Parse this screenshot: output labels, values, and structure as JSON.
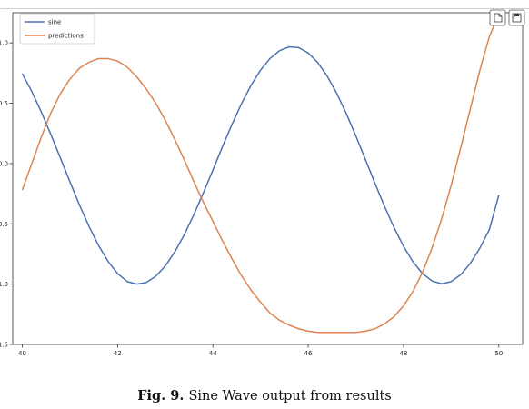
{
  "figure": {
    "caption_prefix": "Fig. 9.",
    "caption_text": "Sine Wave output from results"
  },
  "toolbar": {
    "buttons": [
      {
        "icon": "page-icon"
      },
      {
        "icon": "save-icon"
      }
    ]
  },
  "chart_data": {
    "type": "line",
    "xlim": [
      39.8,
      50.5
    ],
    "ylim": [
      -1.5,
      1.25
    ],
    "xticks": [
      40,
      42,
      44,
      46,
      48,
      50
    ],
    "yticks": [
      -1.5,
      -1.0,
      -0.5,
      0.0,
      0.5,
      1.0
    ],
    "xtick_labels": [
      "40",
      "42",
      "44",
      "46",
      "48",
      "50"
    ],
    "ytick_labels": [
      "-1.5",
      "-1.0",
      "-0.5",
      "0.0",
      "0.5",
      "1.0"
    ],
    "legend_position": "top-left",
    "grid": false,
    "series": [
      {
        "name": "sine",
        "color": "#4c72b0",
        "x": [
          40.0,
          40.2,
          40.4,
          40.6,
          40.8,
          41.0,
          41.2,
          41.4,
          41.6,
          41.8,
          42.0,
          42.2,
          42.4,
          42.6,
          42.8,
          43.0,
          43.2,
          43.4,
          43.6,
          43.8,
          44.0,
          44.2,
          44.4,
          44.6,
          44.8,
          45.0,
          45.2,
          45.4,
          45.6,
          45.8,
          46.0,
          46.2,
          46.4,
          46.6,
          46.8,
          47.0,
          47.2,
          47.4,
          47.6,
          47.8,
          48.0,
          48.2,
          48.4,
          48.6,
          48.8,
          49.0,
          49.2,
          49.4,
          49.6,
          49.8,
          50.0
        ],
        "y": [
          0.745,
          0.597,
          0.427,
          0.241,
          0.046,
          -0.151,
          -0.343,
          -0.521,
          -0.679,
          -0.811,
          -0.912,
          -0.978,
          -1.0,
          -0.987,
          -0.935,
          -0.85,
          -0.733,
          -0.59,
          -0.424,
          -0.243,
          -0.054,
          0.139,
          0.324,
          0.496,
          0.648,
          0.774,
          0.871,
          0.936,
          0.967,
          0.961,
          0.917,
          0.837,
          0.724,
          0.581,
          0.414,
          0.229,
          0.034,
          -0.163,
          -0.353,
          -0.53,
          -0.686,
          -0.816,
          -0.913,
          -0.974,
          -0.997,
          -0.979,
          -0.922,
          -0.829,
          -0.703,
          -0.549,
          -0.262
        ]
      },
      {
        "name": "predictions",
        "color": "#dd8452",
        "x": [
          40.0,
          40.2,
          40.4,
          40.6,
          40.8,
          41.0,
          41.2,
          41.4,
          41.6,
          41.8,
          42.0,
          42.2,
          42.4,
          42.6,
          42.8,
          43.0,
          43.2,
          43.4,
          43.6,
          43.8,
          44.0,
          44.2,
          44.4,
          44.6,
          44.8,
          45.0,
          45.2,
          45.4,
          45.6,
          45.8,
          46.0,
          46.2,
          46.4,
          46.6,
          46.8,
          47.0,
          47.2,
          47.4,
          47.6,
          47.8,
          48.0,
          48.2,
          48.4,
          48.6,
          48.8,
          49.0,
          49.2,
          49.4,
          49.6,
          49.8,
          50.0
        ],
        "y": [
          -0.22,
          0.0,
          0.22,
          0.42,
          0.58,
          0.7,
          0.79,
          0.84,
          0.87,
          0.87,
          0.85,
          0.8,
          0.72,
          0.62,
          0.5,
          0.36,
          0.2,
          0.03,
          -0.15,
          -0.32,
          -0.48,
          -0.64,
          -0.79,
          -0.93,
          -1.05,
          -1.15,
          -1.24,
          -1.3,
          -1.34,
          -1.37,
          -1.39,
          -1.4,
          -1.4,
          -1.4,
          -1.4,
          -1.4,
          -1.39,
          -1.37,
          -1.33,
          -1.27,
          -1.18,
          -1.06,
          -0.9,
          -0.7,
          -0.46,
          -0.18,
          0.13,
          0.45,
          0.77,
          1.05,
          1.24
        ]
      }
    ]
  }
}
